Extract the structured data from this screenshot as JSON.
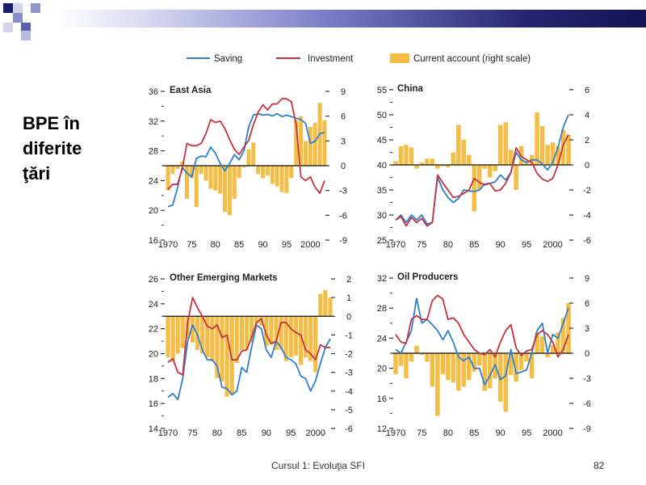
{
  "slide": {
    "title": "BPE în\ndiferite\nţări",
    "footer": "Cursul 1: Evoluţia SFI",
    "page_number": "82"
  },
  "colors": {
    "saving": "#2f7fcf",
    "investment": "#c8323c",
    "current_account": "#f4bd45",
    "band_dark": "#131355"
  },
  "legend": {
    "saving": "Saving",
    "investment": "Investment",
    "current_account": "Current account (right scale)"
  },
  "chart_data": [
    {
      "type": "line",
      "title": "East Asia",
      "x": [
        1970,
        1971,
        1972,
        1973,
        1974,
        1975,
        1976,
        1977,
        1978,
        1979,
        1980,
        1981,
        1982,
        1983,
        1984,
        1985,
        1986,
        1987,
        1988,
        1989,
        1990,
        1991,
        1992,
        1993,
        1994,
        1995,
        1996,
        1997,
        1998,
        1999,
        2000,
        2001,
        2002,
        2003
      ],
      "series": [
        {
          "name": "Saving",
          "axis": "left",
          "values": [
            20.5,
            20.7,
            23,
            25.8,
            25,
            24.5,
            27,
            27.3,
            27.2,
            28.5,
            27.7,
            26.3,
            25.3,
            26.3,
            27.5,
            26.8,
            28,
            31.2,
            32.8,
            33,
            32.8,
            32.9,
            32.7,
            33,
            32.6,
            32.8,
            32.6,
            32.4,
            32.2,
            31.7,
            29,
            29.3,
            30.3,
            30.5
          ]
        },
        {
          "name": "Investment",
          "axis": "left",
          "values": [
            22.8,
            23.5,
            23.5,
            25.5,
            29,
            28.7,
            28.7,
            29,
            30.3,
            32.2,
            31.8,
            32,
            31,
            29.5,
            28.2,
            27.5,
            28.5,
            29.4,
            31.5,
            33.2,
            34.2,
            33.5,
            34.3,
            34.3,
            35,
            35,
            34.6,
            31.6,
            24.5,
            24,
            24.5,
            23.1,
            22.3,
            24
          ]
        },
        {
          "name": "Current account (right scale)",
          "axis": "right",
          "type": "bar",
          "values": [
            -3,
            -1,
            -0.4,
            0.5,
            -4,
            -1.5,
            -5,
            -1,
            -1.8,
            -2.8,
            -3,
            -3.4,
            -5.6,
            -6,
            -4,
            -1.5,
            -0.2,
            2,
            2.8,
            -1,
            -1.5,
            -1.2,
            -2.2,
            -2.5,
            -3.2,
            -3.3,
            -1.5,
            5.5,
            6,
            3,
            4.7,
            5.2,
            7.6,
            5.5
          ]
        }
      ],
      "ylim_left": [
        16,
        36
      ],
      "yticks_left": [
        16,
        20,
        24,
        28,
        32,
        36
      ],
      "ylim_right": [
        -9,
        9
      ],
      "yticks_right": [
        -9,
        -6,
        -3,
        0,
        3,
        6,
        9
      ],
      "xticks": [
        "1970",
        "75",
        "80",
        "85",
        "90",
        "95",
        "2000"
      ],
      "grid": false
    },
    {
      "type": "line",
      "title": "China",
      "x": [
        1970,
        1971,
        1972,
        1973,
        1974,
        1975,
        1976,
        1977,
        1978,
        1979,
        1980,
        1981,
        1982,
        1983,
        1984,
        1985,
        1986,
        1987,
        1988,
        1989,
        1990,
        1991,
        1992,
        1993,
        1994,
        1995,
        1996,
        1997,
        1998,
        1999,
        2000,
        2001,
        2002,
        2003
      ],
      "series": [
        {
          "name": "Saving",
          "axis": "left",
          "values": [
            29,
            30,
            28.5,
            30,
            29,
            30,
            28.2,
            28.5,
            37.5,
            35,
            33.5,
            32.5,
            33.3,
            35,
            34.8,
            34.7,
            35,
            36.2,
            36.3,
            36.6,
            38,
            37,
            38.5,
            42.5,
            41,
            40.5,
            41,
            41,
            40.2,
            39,
            40.5,
            43.5,
            47.5,
            50
          ]
        },
        {
          "name": "Investment",
          "axis": "left",
          "values": [
            29,
            29.7,
            27.8,
            29.5,
            28.5,
            29.3,
            27.8,
            28.5,
            38,
            36.4,
            35,
            33.5,
            33.7,
            34.3,
            35,
            37.3,
            36.5,
            36,
            36.3,
            34.8,
            35,
            36.3,
            38.5,
            43.4,
            41.7,
            41,
            40.5,
            38.3,
            37.2,
            36.7,
            37.3,
            40,
            44,
            46
          ]
        },
        {
          "name": "Current account (right scale)",
          "axis": "right",
          "type": "bar",
          "values": [
            0.3,
            1.5,
            1.6,
            1.4,
            -0.3,
            0.2,
            0.5,
            0.5,
            -0.3,
            -0.1,
            -0.2,
            1,
            3.2,
            2,
            0.8,
            -3.7,
            -2,
            -0.3,
            -1,
            -0.5,
            3.2,
            3.4,
            1.2,
            -2,
            1.5,
            0.3,
            0.8,
            4.2,
            3.1,
            1.6,
            1.8,
            1.5,
            2.8,
            2.4
          ]
        }
      ],
      "ylim_left": [
        25,
        55
      ],
      "yticks_left": [
        25,
        30,
        35,
        40,
        45,
        50,
        55
      ],
      "ylim_right": [
        -6,
        6
      ],
      "yticks_right": [
        -6,
        -4,
        -2,
        0,
        2,
        4,
        6
      ],
      "xticks": [
        "1970",
        "75",
        "80",
        "85",
        "90",
        "95",
        "2000"
      ],
      "grid": false
    },
    {
      "type": "line",
      "title": "Other Emerging Markets",
      "x": [
        1970,
        1971,
        1972,
        1973,
        1974,
        1975,
        1976,
        1977,
        1978,
        1979,
        1980,
        1981,
        1982,
        1983,
        1984,
        1985,
        1986,
        1987,
        1988,
        1989,
        1990,
        1991,
        1992,
        1993,
        1994,
        1995,
        1996,
        1997,
        1998,
        1999,
        2000,
        2001,
        2002,
        2003
      ],
      "series": [
        {
          "name": "Saving",
          "axis": "left",
          "values": [
            16.5,
            16.8,
            16.3,
            18,
            21,
            22.3,
            21.5,
            20.3,
            19.5,
            19.5,
            19,
            17.3,
            17.2,
            16.7,
            17,
            18.9,
            18.5,
            20.5,
            22.3,
            22,
            20.3,
            19.7,
            21,
            20.5,
            19.7,
            19.5,
            19.2,
            18.2,
            18,
            17,
            17.8,
            19.2,
            20.5,
            21.2
          ]
        },
        {
          "name": "Investment",
          "axis": "left",
          "values": [
            19.3,
            19.6,
            18.5,
            18.3,
            22.5,
            24.5,
            23.7,
            23,
            22.2,
            22,
            22.3,
            21.3,
            21.5,
            19.5,
            19.5,
            20.2,
            20.3,
            21.3,
            22.5,
            22.8,
            21.5,
            20.8,
            21,
            22.5,
            22.5,
            22,
            21.7,
            21.5,
            20.3,
            20,
            19.5,
            20.7,
            20.5,
            20.5
          ]
        },
        {
          "name": "Current account (right scale)",
          "axis": "right",
          "type": "bar",
          "values": [
            -2.2,
            -2.4,
            -2,
            -1.7,
            -1.2,
            -1.4,
            -1.8,
            -2,
            -2.2,
            -2.4,
            -3.3,
            -3.5,
            -4.3,
            -4.2,
            -2.5,
            -1.8,
            -1.8,
            -1.4,
            -0.4,
            -0.5,
            -1.6,
            -1.5,
            -1.8,
            -1.8,
            -2.4,
            -2.2,
            -2.1,
            -2.6,
            -2.2,
            -2.4,
            -3,
            1.2,
            1.4,
            1
          ]
        }
      ],
      "ylim_left": [
        14,
        26
      ],
      "yticks_left": [
        14,
        16,
        18,
        20,
        22,
        24,
        26
      ],
      "ylim_right": [
        -6,
        2
      ],
      "yticks_right": [
        -6,
        -5,
        -4,
        -3,
        -2,
        -1,
        0,
        1,
        2
      ],
      "xticks": [
        "1970",
        "75",
        "80",
        "85",
        "90",
        "95",
        "2000"
      ],
      "grid": false
    },
    {
      "type": "line",
      "title": "Oil Producers",
      "x": [
        1970,
        1971,
        1972,
        1973,
        1974,
        1975,
        1976,
        1977,
        1978,
        1979,
        1980,
        1981,
        1982,
        1983,
        1984,
        1985,
        1986,
        1987,
        1988,
        1989,
        1990,
        1991,
        1992,
        1993,
        1994,
        1995,
        1996,
        1997,
        1998,
        1999,
        2000,
        2001,
        2002,
        2003
      ],
      "series": [
        {
          "name": "Saving",
          "axis": "left",
          "values": [
            22.5,
            22,
            23.5,
            25,
            29.3,
            26,
            26.5,
            25.8,
            25,
            23.8,
            25,
            23.5,
            21.5,
            21,
            21.5,
            20,
            20,
            17.8,
            19,
            20.5,
            18.5,
            19,
            22.5,
            19.3,
            19.5,
            19.8,
            22,
            25,
            26,
            22,
            24.5,
            24,
            26,
            28
          ]
        },
        {
          "name": "Investment",
          "axis": "left",
          "values": [
            24.5,
            23.5,
            23.3,
            26.5,
            27,
            26.5,
            26.5,
            29,
            29.7,
            29.2,
            26.5,
            26.7,
            26,
            24.5,
            23.5,
            22.5,
            22,
            21.8,
            22.5,
            21.5,
            23.5,
            25,
            25.8,
            22.7,
            21.7,
            22.3,
            22.5,
            24.5,
            25,
            24.5,
            23.5,
            21.5,
            22.5,
            24.5
          ]
        },
        {
          "name": "Current account (right scale)",
          "axis": "right",
          "type": "bar",
          "values": [
            -2.5,
            -1.5,
            -3,
            -1,
            0.9,
            -0.2,
            -1,
            -4,
            -7.5,
            -2.5,
            -3.2,
            -3.5,
            -4.5,
            -4,
            -3.2,
            -2.2,
            -1.5,
            -4.5,
            -4.2,
            -3,
            -5.8,
            -7,
            -2.6,
            -3.4,
            -2,
            -1,
            -3,
            2.5,
            2,
            -0.5,
            1,
            2.5,
            4.2,
            6
          ]
        }
      ],
      "ylim_left": [
        12,
        32
      ],
      "yticks_left": [
        12,
        16,
        20,
        24,
        28,
        32
      ],
      "ylim_right": [
        -9,
        9
      ],
      "yticks_right": [
        -9,
        -6,
        -3,
        0,
        3,
        6,
        9
      ],
      "xticks": [
        "1970",
        "75",
        "80",
        "85",
        "90",
        "95",
        "2000"
      ],
      "grid": false
    }
  ]
}
